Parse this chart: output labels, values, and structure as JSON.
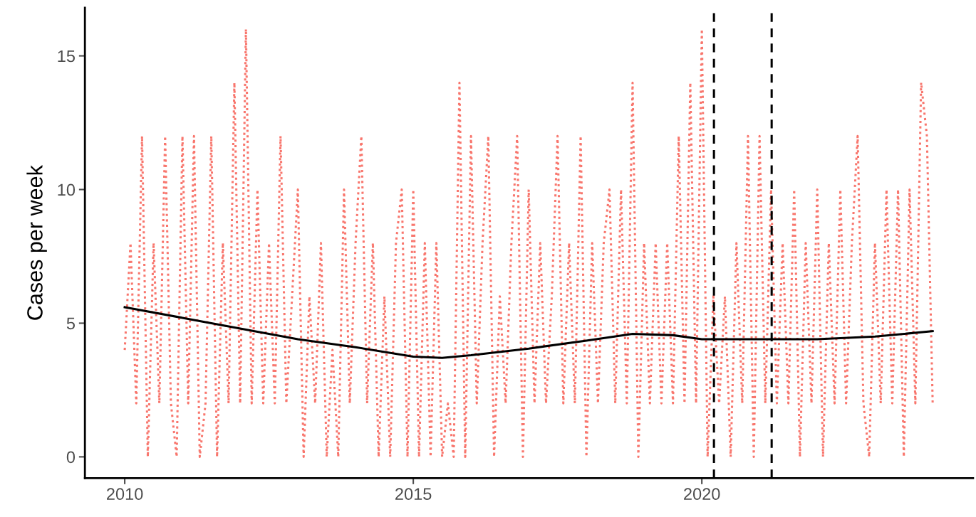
{
  "chart_data": {
    "type": "line",
    "ylabel": "Cases per week",
    "x": [
      2010.0,
      2010.1,
      2010.2,
      2010.3,
      2010.4,
      2010.5,
      2010.6,
      2010.7,
      2010.8,
      2010.9,
      2011.0,
      2011.1,
      2011.2,
      2011.3,
      2011.4,
      2011.5,
      2011.6,
      2011.7,
      2011.8,
      2011.9,
      2012.0,
      2012.1,
      2012.2,
      2012.3,
      2012.4,
      2012.5,
      2012.6,
      2012.7,
      2012.8,
      2012.9,
      2013.0,
      2013.1,
      2013.2,
      2013.3,
      2013.4,
      2013.5,
      2013.6,
      2013.7,
      2013.8,
      2013.9,
      2014.0,
      2014.1,
      2014.2,
      2014.3,
      2014.4,
      2014.5,
      2014.6,
      2014.7,
      2014.8,
      2014.9,
      2015.0,
      2015.1,
      2015.2,
      2015.3,
      2015.4,
      2015.5,
      2015.6,
      2015.7,
      2015.8,
      2015.9,
      2016.0,
      2016.1,
      2016.2,
      2016.3,
      2016.4,
      2016.5,
      2016.6,
      2016.7,
      2016.8,
      2016.9,
      2017.0,
      2017.1,
      2017.2,
      2017.3,
      2017.4,
      2017.5,
      2017.6,
      2017.7,
      2017.8,
      2017.9,
      2018.0,
      2018.1,
      2018.2,
      2018.3,
      2018.4,
      2018.5,
      2018.6,
      2018.7,
      2018.8,
      2018.9,
      2019.0,
      2019.1,
      2019.2,
      2019.3,
      2019.4,
      2019.5,
      2019.6,
      2019.7,
      2019.8,
      2019.9,
      2020.0,
      2020.1,
      2020.2,
      2020.3,
      2020.4,
      2020.5,
      2020.6,
      2020.7,
      2020.8,
      2020.9,
      2021.0,
      2021.1,
      2021.2,
      2021.3,
      2021.4,
      2021.5,
      2021.6,
      2021.7,
      2021.8,
      2021.9,
      2022.0,
      2022.1,
      2022.2,
      2022.3,
      2022.4,
      2022.5,
      2022.6,
      2022.7,
      2022.8,
      2022.9,
      2023.0,
      2023.1,
      2023.2,
      2023.3,
      2023.4,
      2023.5,
      2023.6,
      2023.7,
      2023.8,
      2023.9,
      2024.0
    ],
    "series": [
      {
        "color": "#f8766d",
        "line_style": "dotted",
        "values": [
          4,
          8,
          2,
          12,
          0,
          8,
          2,
          12,
          2,
          0,
          12,
          2,
          12,
          0,
          2,
          12,
          0,
          8,
          2,
          14,
          2,
          16,
          2,
          10,
          2,
          8,
          2,
          12,
          2,
          6,
          10,
          0,
          6,
          2,
          8,
          0,
          4,
          0,
          10,
          2,
          8,
          12,
          2,
          8,
          0,
          6,
          0,
          8,
          10,
          0,
          10,
          0,
          8,
          0,
          8,
          0,
          2,
          0,
          14,
          0,
          12,
          2,
          8,
          12,
          0,
          6,
          2,
          8,
          12,
          0,
          10,
          2,
          8,
          2,
          6,
          12,
          2,
          8,
          2,
          12,
          0,
          8,
          2,
          8,
          10,
          2,
          10,
          2,
          14,
          0,
          8,
          2,
          8,
          2,
          8,
          2,
          12,
          2,
          14,
          2,
          16,
          0,
          6,
          2,
          6,
          0,
          8,
          2,
          12,
          0,
          12,
          2,
          10,
          2,
          8,
          2,
          10,
          0,
          8,
          2,
          10,
          0,
          8,
          2,
          10,
          2,
          8,
          12,
          2,
          0,
          8,
          2,
          10,
          2,
          10,
          0,
          10,
          2,
          14,
          12,
          2
        ]
      },
      {
        "color": "#000000",
        "line_style": "solid",
        "x": [
          2010.0,
          2011.0,
          2012.0,
          2013.0,
          2014.0,
          2015.0,
          2015.5,
          2016.0,
          2017.0,
          2018.0,
          2018.8,
          2019.5,
          2020.0,
          2021.0,
          2022.0,
          2023.0,
          2024.0
        ],
        "values": [
          5.6,
          5.2,
          4.8,
          4.4,
          4.1,
          3.75,
          3.7,
          3.8,
          4.05,
          4.35,
          4.6,
          4.55,
          4.4,
          4.4,
          4.4,
          4.5,
          4.7
        ]
      }
    ],
    "ref_lines": [
      {
        "axis": "x",
        "value": 2020.21,
        "color": "#000000",
        "line_style": "dashed"
      },
      {
        "axis": "x",
        "value": 2021.21,
        "color": "#000000",
        "line_style": "dashed"
      }
    ],
    "xlim": [
      2009.31,
      2024.7
    ],
    "xticks": [
      2010,
      2015,
      2020
    ],
    "ylim": [
      -0.8,
      16.8
    ],
    "yticks": [
      0,
      5,
      10,
      15
    ],
    "grid": false
  }
}
